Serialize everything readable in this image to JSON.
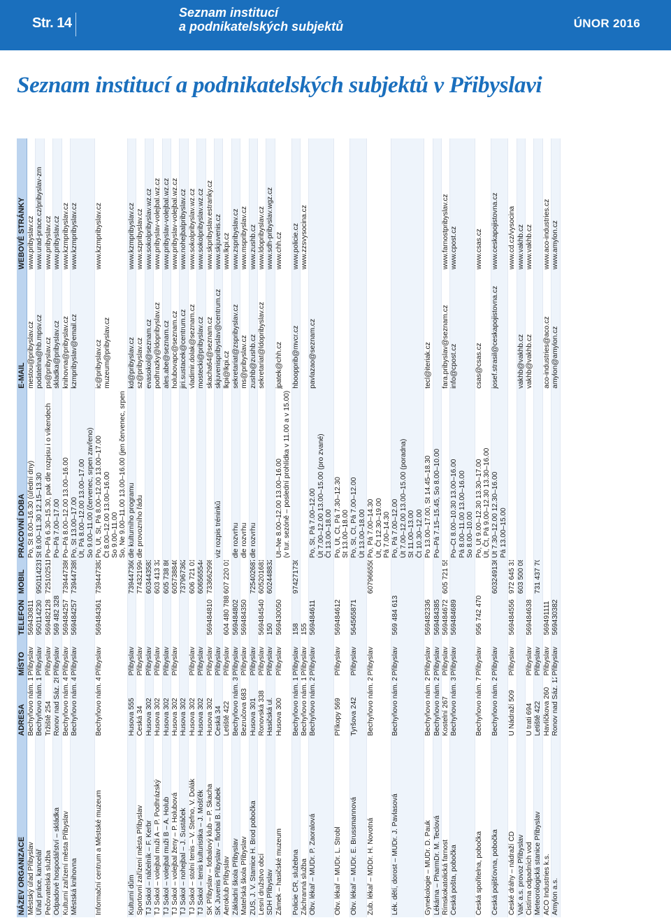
{
  "header": {
    "page": "Str. 14",
    "subtitle_line1": "Seznam institucí",
    "subtitle_line2": "a podnikatelských subjektů",
    "date": "ÚNOR 2016"
  },
  "title": "Seznam institucí a podnikatelských subjektů v Přibyslavi",
  "table": {
    "columns": [
      "NÁZEV ORGANIZACE",
      "ADRESA",
      "MÍSTO",
      "TELEFON",
      "MOBIL",
      "PRACOVNÍ DOBA",
      "E-MAIL",
      "WEBOVÉ STRÁNKY"
    ],
    "rows": [
      [
        [
          "Městský úřad Přibyslav"
        ],
        [
          "Bechyňovo nám. 1"
        ],
        [
          "Přibyslav"
        ],
        [
          "569430811"
        ],
        [
          ""
        ],
        [
          "Po, St 8.00–16.30 (úřední dny)"
        ],
        [
          "mestou@pribyslav.cz"
        ],
        [
          "www.pribyslav.cz"
        ]
      ],
      [
        [
          "Úřad práce, kancelář"
        ],
        [
          "Bechyňovo nám. 1"
        ],
        [
          "Přibyslav"
        ],
        [
          "950114230"
        ],
        [
          "950114231"
        ],
        [
          "St 8.00–11.30 12.15–13.30"
        ],
        [
          "podatelna@hb.mpsv.cz"
        ],
        [
          "www.urad-prace.cz/pribyslav-zm"
        ]
      ],
      [
        [
          "Pečovatelská služba"
        ],
        [
          "Tržiště 254"
        ],
        [
          "Přibyslav"
        ],
        [
          "569482128"
        ],
        [
          "725102511"
        ],
        [
          "Po–Pá 6.30–15.30, pak dle rozpisu i o víkendech"
        ],
        [
          "ps@pribyslav.cz"
        ],
        [
          "www.pribyslav.cz"
        ]
      ],
      [
        [
          "Odpadové hospodářství – skládka"
        ],
        [
          "Ronov nad Sáz. 28"
        ],
        [
          "Přibyslav"
        ],
        [
          "569 482 328"
        ],
        [
          ""
        ],
        [
          "Po–Pá 7.00–17.00"
        ],
        [
          "skladka@pribyslav.cz"
        ],
        [
          "www.pribyslav.cz"
        ]
      ],
      [
        [
          "Kulturní zařízení města Přibyslav"
        ],
        [
          "Bechyňovo nám. 45"
        ],
        [
          "Přibyslav"
        ],
        [
          "569484257"
        ],
        [
          "739447386"
        ],
        [
          "Po–Pá 8.00–12.00 13.00–16.00"
        ],
        [
          "knihovna@pribyslav.cz"
        ],
        [
          "www.kzmpribyslav.cz"
        ]
      ],
      [
        [
          "Městská knihovna"
        ],
        [
          "Bechyňovo nám. 45"
        ],
        [
          "Přibyslav"
        ],
        [
          "569484257"
        ],
        [
          "739447389"
        ],
        [
          "Po, St 13.00–17.00",
          "Út, Pá 8.00–12.00 13.00–17.00",
          "So 9.00–11.00 (červenec, srpen zavřeno)"
        ],
        [
          "kzmpribyslav@email.cz"
        ],
        [
          "www.kzmpribyslav.cz"
        ]
      ],
      [
        [
          "Informační centrum a Městské muzeum"
        ],
        [
          "Bechyňovo nám. 45"
        ],
        [
          "Přibyslav"
        ],
        [
          "569484361"
        ],
        [
          "739447382"
        ],
        [
          "Po, Út, St, Pá 8.00–12.00 13.00–17.00",
          "Čt 8.00–12.00 13.00–16.00",
          "So 9.00–11.00",
          "So, Ne 9.00–11.00 13.00–16.00 (jen červenec, srpen)"
        ],
        [
          "ic@pribyslav.cz",
          "muzeum@pribyslav.cz"
        ],
        [
          "www.kzmpribyslav.cz"
        ]
      ],
      [
        [
          "Kulturní dům"
        ],
        [
          "Husova 555"
        ],
        [
          "Přibyslav"
        ],
        [
          ""
        ],
        [
          "739447360"
        ],
        [
          "dle kulturního programu"
        ],
        [
          "kd@pribyslav.cz"
        ],
        [
          "www.kzmpribyslav.cz"
        ]
      ],
      [
        [
          "Sportovní zařízení města Přibyslav"
        ],
        [
          "Česká 34"
        ],
        [
          "Přibyslav"
        ],
        [
          ""
        ],
        [
          "774321994"
        ],
        [
          "dle provozního řádu"
        ],
        [
          "sz@pribyslav.cz"
        ],
        [
          "www.szpribyslav.cz"
        ]
      ],
      [
        [
          "TJ Sokol – náčelník – F. Kerbr"
        ],
        [
          "Husova 302"
        ],
        [
          "Přibyslav"
        ],
        [
          ""
        ],
        [
          "603443583"
        ],
        [
          ""
        ],
        [
          "evasokol@seznam.cz"
        ],
        [
          "www.sokolpribyslav.wz.cz"
        ]
      ],
      [
        [
          "TJ Sokol – volejbal muži A – P. Podhrázský"
        ],
        [
          "Husova 302"
        ],
        [
          "Přibyslav"
        ],
        [
          ""
        ],
        [
          "603 413 329"
        ],
        [
          ""
        ],
        [
          "podhrazky@ldopribyslav.cz"
        ],
        [
          "www.pribyslav-volejbal.wz.cz"
        ]
      ],
      [
        [
          "TJ Sokol – volejbal muži B – A. Holub"
        ],
        [
          "Husova 302"
        ],
        [
          "Přibyslav"
        ],
        [
          ""
        ],
        [
          "605 738 860"
        ],
        [
          ""
        ],
        [
          "ales.abe@seznam.cz"
        ],
        [
          "www.pribyslav-volejbal.wz.cz"
        ]
      ],
      [
        [
          "TJ Sokol – volejbal ženy – P. Holubová"
        ],
        [
          "Husova 302"
        ],
        [
          "Přibyslav"
        ],
        [
          ""
        ],
        [
          "605738840"
        ],
        [
          ""
        ],
        [
          "holubovapc@seznam.cz"
        ],
        [
          "www.pribyslav-volejbal.wz.cz"
        ]
      ],
      [
        [
          "TJ Sokol – nohejbal – J. Šustáček"
        ],
        [
          "Husova 302"
        ],
        [
          ""
        ],
        [
          ""
        ],
        [
          "737967362"
        ],
        [
          ""
        ],
        [
          "jiri.sustacek@centrum.cz"
        ],
        [
          "www.nohejbalpribyslav.cz"
        ]
      ],
      [
        [
          "TJ Sokol – stolní tenis – V. Štefno, V. Dolák"
        ],
        [
          "Husova 302"
        ],
        [
          "Přibyslav"
        ],
        [
          ""
        ],
        [
          "606 721 010"
        ],
        [
          ""
        ],
        [
          "vladimir.dolak@seznam.cz"
        ],
        [
          "www.sokolpribyslav.wz.cz"
        ]
      ],
      [
        [
          "TJ Sokol – tenis kulturistika – J. Mošťěk"
        ],
        [
          "Husova 302"
        ],
        [
          "Přibyslav"
        ],
        [
          ""
        ],
        [
          "606565544"
        ],
        [
          ""
        ],
        [
          "mostecki@pribyslav.cz"
        ],
        [
          "www.sokolpribyslav.wz.cz"
        ]
      ],
      [
        [
          "SK Přibyslav – fotbalový klub – P. Škacha"
        ],
        [
          "Husova 302"
        ],
        [
          "Přibyslav"
        ],
        [
          "569484810"
        ],
        [
          "733662998"
        ],
        [
          ""
        ],
        [
          "skacha64@seznam.cz"
        ],
        [
          "www.skpribyslav.estranky.cz"
        ]
      ],
      [
        [
          "SK Juvenis Přibyslav – florbal B. Loubek"
        ],
        [
          "Česká 34"
        ],
        [
          "Přibyslav"
        ],
        [
          ""
        ],
        [
          ""
        ],
        [
          "viz rozpis tréninků"
        ],
        [
          "skjuvenispribyslav@centrum.cz"
        ],
        [
          "www.skjuvenis.cz"
        ]
      ],
      [
        [
          "Aeroklub Přibyslav"
        ],
        [
          "Letiště 422"
        ],
        [
          "Přibyslav"
        ],
        [
          "604 480 788"
        ],
        [
          "607 220 019"
        ],
        [
          ""
        ],
        [
          "lkpi@lkpi.cz"
        ],
        [
          "www.lkpi.cz"
        ]
      ],
      [
        [
          "Základní škola Přibyslav"
        ],
        [
          "Bechyňovo nám. 33"
        ],
        [
          "Přibyslav"
        ],
        [
          "569484802"
        ],
        [
          ""
        ],
        [
          "dle rozvrhu"
        ],
        [
          "sekretariat@zspribyslav.cz"
        ],
        [
          "www.zspribyslav.cz"
        ]
      ],
      [
        [
          "Mateřská škola Přibyslav"
        ],
        [
          "Bezručova 683"
        ],
        [
          "Přibyslav"
        ],
        [
          "569484350"
        ],
        [
          ""
        ],
        [
          "dle rozvrhu"
        ],
        [
          "ms@pribyslav.cz"
        ],
        [
          "www.mspribyslav.cz"
        ]
      ],
      [
        [
          "ZUŠ, J. V. Stamice H. Brod pobočka"
        ],
        [
          "Husova 301"
        ],
        [
          "Přibyslav"
        ],
        [
          ""
        ],
        [
          "725402687"
        ],
        [
          "dle rozvrhu"
        ],
        [
          "zushb@zushb.cz"
        ],
        [
          "www.zushb.cz"
        ]
      ],
      [
        [
          "Lesní družstvo obcí"
        ],
        [
          "Ronovská 338"
        ],
        [
          "Přibyslav"
        ],
        [
          "569484540"
        ],
        [
          "605201681"
        ],
        [
          ""
        ],
        [
          "sekretariat@ldopribyslav.cz"
        ],
        [
          "www.ldopribyslav.cz"
        ]
      ],
      [
        [
          "SDH Přibyslav"
        ],
        [
          "Hasičská ul."
        ],
        [
          "Přibyslav"
        ],
        [
          "150"
        ],
        [
          "602448832"
        ],
        [
          ""
        ],
        [
          ""
        ],
        [
          "www.sdh-pribyslav.wgz.cz"
        ]
      ],
      [
        [
          "Zámek – hasičské muzeum"
        ],
        [
          "Husova 300"
        ],
        [
          "Přibyslav"
        ],
        [
          "569430050"
        ],
        [
          ""
        ],
        [
          "Út–Ne 8.00–12.00 13.00–16.00",
          "(v tur. sezóně – poslední prohlídka v 11.00 a v 15.00)"
        ],
        [
          "jpatek@chh.cz"
        ],
        [
          "www.chh.cz"
        ]
      ],
      [
        [
          "Policie ČR, služebna"
        ],
        [
          "Bechyňovo nám. 18"
        ],
        [
          "Přibyslav"
        ],
        [
          "158"
        ],
        [
          "974271730/1"
        ],
        [
          ""
        ],
        [
          "hboopprib@mvcr.cz"
        ],
        [
          "www.policie.cz"
        ]
      ],
      [
        [
          "Záchranná služba"
        ],
        [
          "Bechyňovo nám. 18"
        ],
        [
          "Přibyslav"
        ],
        [
          "155"
        ],
        [
          ""
        ],
        [
          ""
        ],
        [
          ""
        ],
        [
          "www.zzsvysocina.cz"
        ]
      ],
      [
        [
          "Obv. lékař – MUDr. P. Zaoralová"
        ],
        [
          "Bechyňovo nám. 2"
        ],
        [
          "Přibyslav"
        ],
        [
          "569484611"
        ],
        [
          ""
        ],
        [
          "Po, St, Pá 7.00–12.00",
          "Út 7.00–12.00 13.00–15.00 (pro zvané)",
          "Čt 13.00–18.00"
        ],
        [
          "pavlazao@seznam.cz"
        ],
        [
          ""
        ]
      ],
      [
        [
          "Obv. lékař – MUDr. L. Štrobl"
        ],
        [
          "Příkopy 569"
        ],
        [
          "Přibyslav"
        ],
        [
          "569484612"
        ],
        [
          ""
        ],
        [
          "Po, Út, Čt, Pá 7.30–12.30",
          "St 13.00–18.00"
        ],
        [
          ""
        ],
        [
          ""
        ]
      ],
      [
        [
          "Obv. lékař – MUDr. E. Brussmannová"
        ],
        [
          "Tyršova 242"
        ],
        [
          "Přibyslav"
        ],
        [
          "564565871"
        ],
        [
          ""
        ],
        [
          "Po, St, Čt, Pá 7.00–12.00",
          "Út 13.00–18.00"
        ],
        [
          ""
        ],
        [
          ""
        ]
      ],
      [
        [
          "Zub. lékař – MDDr. H. Novotná"
        ],
        [
          "Bechyňovo nám. 2"
        ],
        [
          "Přibyslav"
        ],
        [
          ""
        ],
        [
          "607966550"
        ],
        [
          "Po, Pá 7.00–14.30",
          "Út, Čt 12.30–19.00",
          "Pá 7.00–14.30"
        ],
        [
          ""
        ],
        [
          ""
        ]
      ],
      [
        [
          "Lék. dětí, dorost – MUDr. J. Pavlasová"
        ],
        [
          "Bechyňovo nám. 2"
        ],
        [
          "Přibyslav"
        ],
        [
          "569 484 613"
        ],
        [
          ""
        ],
        [
          "Po, Pá 7.00–12.00",
          "Út 7.00–12.00 13.00–15.00 (poradna)",
          "St 11.00–13.00",
          "Čt 10.30–12.00"
        ],
        [
          ""
        ],
        [
          ""
        ]
      ],
      [
        [
          "Gynekologie – MUDr. D. Pauk"
        ],
        [
          "Bechyňovo nám. 2"
        ],
        [
          "Přibyslav"
        ],
        [
          "569482336"
        ],
        [
          ""
        ],
        [
          "Po 13.00–17.00, St 14.45–18.30"
        ],
        [
          "tecl@iteriak.cz"
        ],
        [
          ""
        ]
      ],
      [
        [
          "Lékárna – PharmDr. M. Teclová"
        ],
        [
          "Bechyňovo nám. 2"
        ],
        [
          "Přibyslav"
        ],
        [
          "569484385"
        ],
        [
          ""
        ],
        [
          "Po–Pá 7.15–15.45, So 8.00–10.00"
        ],
        [
          ""
        ],
        [
          ""
        ]
      ],
      [
        [
          "Římskokatolická farnost"
        ],
        [
          "Kostelní 267"
        ],
        [
          "Přibyslav"
        ],
        [
          "569484672"
        ],
        [
          "605 721 555"
        ],
        [
          ""
        ],
        [
          "fara.pribyslav@seznam.cz"
        ],
        [
          "www.farnostpribyslav.cz"
        ]
      ],
      [
        [
          "Česká pošta, pobočka"
        ],
        [
          "Bechyňovo nám. 3"
        ],
        [
          "Přibyslav"
        ],
        [
          "569484689"
        ],
        [
          ""
        ],
        [
          "Po–Čt 8.00–10.30 13.00–16.00",
          "Pá 8.00–11.00 13.00–16.00",
          "So 8.00–10.00"
        ],
        [
          "info@cpost.cz"
        ],
        [
          "www.cpost.cz"
        ]
      ],
      [
        [
          "Česká spořitelna, pobočka"
        ],
        [
          "Bechyňovo nám. 7"
        ],
        [
          "Přibyslav"
        ],
        [
          "956 742 470"
        ],
        [
          ""
        ],
        [
          "Po, Út 9.00–12.30 13.30–17.00",
          "Út, Čt, Pá 9.00–12.30 13.30–16.00"
        ],
        [
          "csas@csas.cz"
        ],
        [
          "www.csas.cz"
        ]
      ],
      [
        [
          "Česká pojišťovna, pobočka"
        ],
        [
          "Bechyňovo nám. 20"
        ],
        [
          "Přibyslav"
        ],
        [
          ""
        ],
        [
          "603249136"
        ],
        [
          "Út 7.30–12.00 12.30–16.00",
          "Pá 13.00–15.00"
        ],
        [
          "josef.strasil@ceskapojistovna.cz"
        ],
        [
          "www.ceskapojistovna.cz"
        ]
      ],
      [
        [
          "České dráhy – nádraží ČD"
        ],
        [
          "U Nádraží 509"
        ],
        [
          "Přibyslav"
        ],
        [
          "569484556"
        ],
        [
          "972 645 317"
        ],
        [
          ""
        ],
        [
          ""
        ],
        [
          "www.cd.cz/vysocina"
        ]
      ],
      [
        [
          "VaK a.s. provoz Přibyslav"
        ],
        [
          ""
        ],
        [
          ""
        ],
        [
          ""
        ],
        [
          "603 500 085"
        ],
        [
          ""
        ],
        [
          "vakhb@vakhb.cz"
        ],
        [
          "www.vakhb.cz"
        ]
      ],
      [
        [
          "Čistírna odpadních vod"
        ],
        [
          "U trati 694"
        ],
        [
          "Přibyslav"
        ],
        [
          "569484638"
        ],
        [
          ""
        ],
        [
          ""
        ],
        [
          "vakhb@vakhb.cz"
        ],
        [
          "www.vakhb.cz"
        ]
      ],
      [
        [
          "Meteorologická stanice Přibyslav"
        ],
        [
          "Letiště 422"
        ],
        [
          "Přibyslav"
        ],
        [
          ""
        ],
        [
          "731 437 703"
        ],
        [
          ""
        ],
        [
          ""
        ],
        [
          ""
        ]
      ],
      [
        [
          "ACO Industries k.s."
        ],
        [
          "Havlíčkova 260"
        ],
        [
          "Přibyslav"
        ],
        [
          "569491111"
        ],
        [
          ""
        ],
        [
          ""
        ],
        [
          "aco-industries@aco.cz"
        ],
        [
          "www.aco-industries.cz"
        ]
      ],
      [
        [
          "Amylon a.s."
        ],
        [
          "Ronov nad Sáz. 12"
        ],
        [
          "Přibyslav"
        ],
        [
          "569430382"
        ],
        [
          ""
        ],
        [
          ""
        ],
        [
          "amylon@amylon.cz"
        ],
        [
          "www.amylon.cz"
        ]
      ]
    ]
  }
}
